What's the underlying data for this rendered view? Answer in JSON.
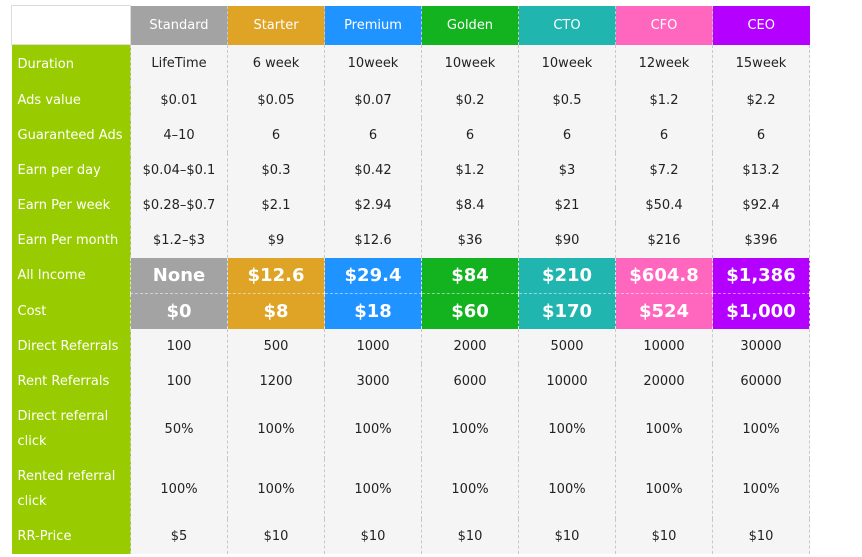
{
  "plans": [
    {
      "name": "Standard",
      "color": "#a3a3a3",
      "duration": "LifeTime",
      "ads_value": "$0.01",
      "guaranteed_ads": "4–10",
      "earn_day": "$0.04–$0.1",
      "earn_week": "$0.28–$0.7",
      "earn_month": "$1.2–$3",
      "income": "None",
      "cost": "$0",
      "direct_referrals": "100",
      "rent_referrals": "100",
      "direct_click": "50%",
      "rented_click": "100%",
      "rr_price": "$5"
    },
    {
      "name": "Starter",
      "color": "#dfa326",
      "duration": "6 week",
      "ads_value": "$0.05",
      "guaranteed_ads": "6",
      "earn_day": "$0.3",
      "earn_week": "$2.1",
      "earn_month": "$9",
      "income": "$12.6",
      "cost": "$8",
      "direct_referrals": "500",
      "rent_referrals": "1200",
      "direct_click": "100%",
      "rented_click": "100%",
      "rr_price": "$10"
    },
    {
      "name": "Premium",
      "color": "#1f93ff",
      "duration": "10week",
      "ads_value": "$0.07",
      "guaranteed_ads": "6",
      "earn_day": "$0.42",
      "earn_week": "$2.94",
      "earn_month": "$12.6",
      "income": "$29.4",
      "cost": "$18",
      "direct_referrals": "1000",
      "rent_referrals": "3000",
      "direct_click": "100%",
      "rented_click": "100%",
      "rr_price": "$10"
    },
    {
      "name": "Golden",
      "color": "#13b21f",
      "duration": "10week",
      "ads_value": "$0.2",
      "guaranteed_ads": "6",
      "earn_day": "$1.2",
      "earn_week": "$8.4",
      "earn_month": "$36",
      "income": "$84",
      "cost": "$60",
      "direct_referrals": "2000",
      "rent_referrals": "6000",
      "direct_click": "100%",
      "rented_click": "100%",
      "rr_price": "$10"
    },
    {
      "name": "CTO",
      "color": "#20b5ae",
      "duration": "10week",
      "ads_value": "$0.5",
      "guaranteed_ads": "6",
      "earn_day": "$3",
      "earn_week": "$21",
      "earn_month": "$90",
      "income": "$210",
      "cost": "$170",
      "direct_referrals": "5000",
      "rent_referrals": "10000",
      "direct_click": "100%",
      "rented_click": "100%",
      "rr_price": "$10"
    },
    {
      "name": "CFO",
      "color": "#ff66bd",
      "duration": "12week",
      "ads_value": "$1.2",
      "guaranteed_ads": "6",
      "earn_day": "$7.2",
      "earn_week": "$50.4",
      "earn_month": "$216",
      "income": "$604.8",
      "cost": "$524",
      "direct_referrals": "10000",
      "rent_referrals": "20000",
      "direct_click": "100%",
      "rented_click": "100%",
      "rr_price": "$10"
    },
    {
      "name": "CEO",
      "color": "#b300ff",
      "duration": "15week",
      "ads_value": "$2.2",
      "guaranteed_ads": "6",
      "earn_day": "$13.2",
      "earn_week": "$92.4",
      "earn_month": "$396",
      "income": "$1,386",
      "cost": "$1,000",
      "direct_referrals": "30000",
      "rent_referrals": "60000",
      "direct_click": "100%",
      "rented_click": "100%",
      "rr_price": "$10"
    }
  ],
  "rows": [
    {
      "key": "duration",
      "label": "Duration"
    },
    {
      "key": "ads_value",
      "label": "Ads value"
    },
    {
      "key": "guaranteed_ads",
      "label": "Guaranteed Ads"
    },
    {
      "key": "earn_day",
      "label": "Earn per day"
    },
    {
      "key": "earn_week",
      "label": "Earn Per week"
    },
    {
      "key": "earn_month",
      "label": "Earn Per month"
    },
    {
      "key": "income",
      "label": "All Income",
      "highlight": true
    },
    {
      "key": "cost",
      "label": "Cost",
      "highlight": true
    },
    {
      "key": "direct_referrals",
      "label": "Direct Referrals"
    },
    {
      "key": "rent_referrals",
      "label": "Rent Referrals"
    },
    {
      "key": "direct_click",
      "label": "Direct referral click",
      "tall": true
    },
    {
      "key": "rented_click",
      "label": "Rented referral click",
      "tall": true
    },
    {
      "key": "rr_price",
      "label": "RR-Price"
    }
  ]
}
